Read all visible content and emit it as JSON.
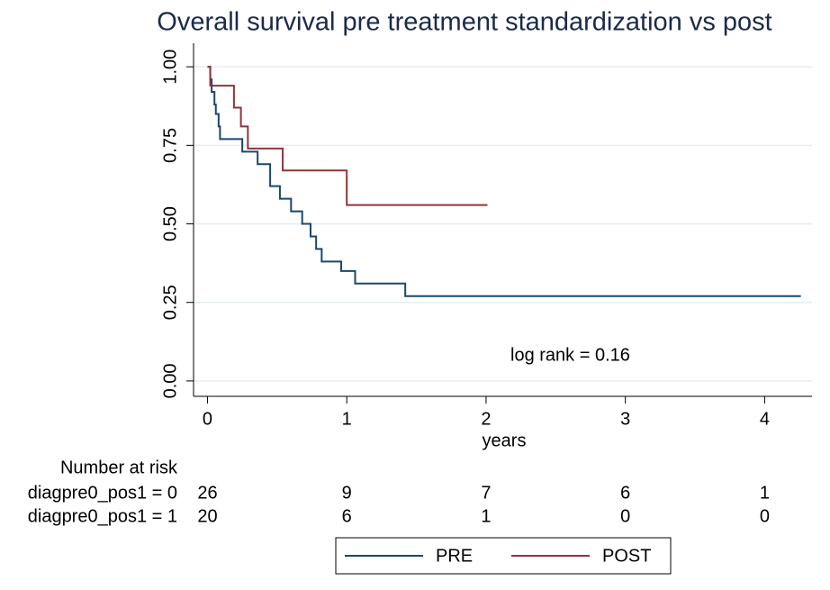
{
  "chart_data": {
    "type": "step-line",
    "title": "Overall survival pre treatment standardization vs post",
    "x_label": "years",
    "annotation": "log rank = 0.16",
    "xlim": [
      -0.1,
      4.34
    ],
    "ylim": [
      -0.049,
      1.075
    ],
    "xticks": [
      0,
      1,
      2,
      3,
      4
    ],
    "yticks": [
      {
        "value": 0,
        "label": "0.00"
      },
      {
        "value": 0.25,
        "label": "0.25"
      },
      {
        "value": 0.5,
        "label": "0.50"
      },
      {
        "value": 0.75,
        "label": "0.75"
      },
      {
        "value": 1,
        "label": "1.00"
      }
    ],
    "grid": true,
    "series": [
      {
        "name": "PRE",
        "color": "#1a476f",
        "x": [
          0,
          0.02,
          0.02,
          0.03,
          0.03,
          0.05,
          0.05,
          0.06,
          0.06,
          0.08,
          0.08,
          0.09,
          0.09,
          0.25,
          0.25,
          0.36,
          0.36,
          0.45,
          0.45,
          0.52,
          0.52,
          0.6,
          0.6,
          0.68,
          0.68,
          0.74,
          0.74,
          0.78,
          0.78,
          0.82,
          0.82,
          0.96,
          0.96,
          1.06,
          1.06,
          1.42,
          1.42,
          4.26
        ],
        "values": [
          1,
          1,
          0.96,
          0.96,
          0.92,
          0.92,
          0.88,
          0.88,
          0.85,
          0.85,
          0.81,
          0.81,
          0.77,
          0.77,
          0.73,
          0.73,
          0.69,
          0.69,
          0.62,
          0.62,
          0.58,
          0.58,
          0.54,
          0.54,
          0.5,
          0.5,
          0.46,
          0.46,
          0.42,
          0.42,
          0.38,
          0.38,
          0.35,
          0.35,
          0.31,
          0.31,
          0.27,
          0.27
        ]
      },
      {
        "name": "POST",
        "color": "#90353b",
        "x": [
          0,
          0.02,
          0.02,
          0.19,
          0.19,
          0.24,
          0.24,
          0.29,
          0.29,
          0.54,
          0.54,
          1.0,
          1.0,
          2.01
        ],
        "values": [
          1,
          1,
          0.94,
          0.94,
          0.87,
          0.87,
          0.81,
          0.81,
          0.74,
          0.74,
          0.67,
          0.67,
          0.56,
          0.56
        ]
      }
    ],
    "risk_table": {
      "title": "Number at risk",
      "rows": [
        {
          "label": "diagpre0_pos1 = 0",
          "values": [
            26,
            9,
            7,
            6,
            1
          ]
        },
        {
          "label": "diagpre0_pos1 = 1",
          "values": [
            20,
            6,
            1,
            0,
            0
          ]
        }
      ]
    }
  }
}
